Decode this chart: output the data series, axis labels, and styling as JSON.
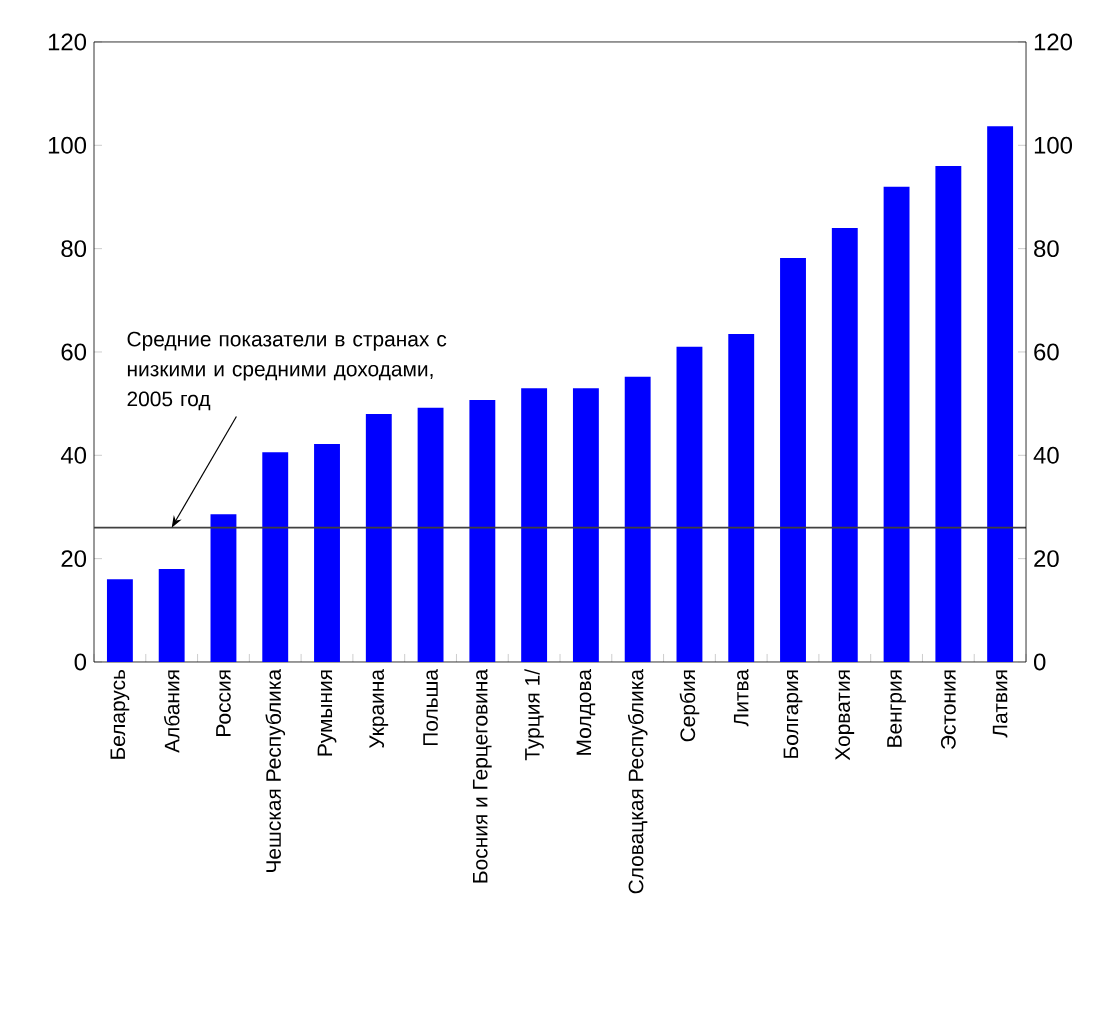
{
  "chart_data": {
    "type": "bar",
    "categories": [
      "Беларусь",
      "Албания",
      "Россия",
      "Чешская Республика",
      "Румыния",
      "Украина",
      "Польша",
      "Босния и Герцеговина",
      "Турция 1/",
      "Молдова",
      "Словацкая Республика",
      "Сербия",
      "Литва",
      "Болгария",
      "Хорватия",
      "Венгрия",
      "Эстония",
      "Латвия"
    ],
    "values": [
      16,
      18,
      28.6,
      40.6,
      42.2,
      48,
      49.2,
      50.7,
      53,
      53,
      55.2,
      61,
      63.5,
      78.2,
      84,
      92,
      96,
      103.7
    ],
    "color": "#0000ff",
    "ylim": [
      0,
      120
    ],
    "yticks": [
      0,
      20,
      40,
      60,
      80,
      100,
      120
    ],
    "y2lim": [
      0,
      120
    ],
    "y2ticks": [
      0,
      20,
      40,
      60,
      80,
      100,
      120
    ],
    "ref_lines": [
      {
        "axis": "y",
        "value": 26,
        "color": "#404040"
      }
    ],
    "annotations": [
      {
        "text": "Средние показатели в странах с низкими и средними доходами, 2005 год",
        "x": "Албания",
        "y": 26
      }
    ],
    "grid": false
  }
}
